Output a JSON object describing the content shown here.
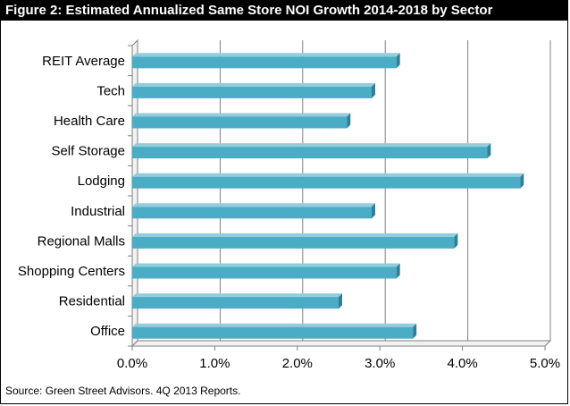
{
  "title": "Figure 2: Estimated Annualized Same Store NOI Growth 2014-2018 by Sector",
  "source": "Source: Green Street Advisors. 4Q 2013 Reports.",
  "chart_data": {
    "type": "bar",
    "orientation": "horizontal",
    "categories": [
      "REIT Average",
      "Tech",
      "Health Care",
      "Self Storage",
      "Lodging",
      "Industrial",
      "Regional Malls",
      "Shopping Centers",
      "Residential",
      "Office"
    ],
    "values": [
      3.2,
      2.9,
      2.6,
      4.3,
      4.7,
      2.9,
      3.9,
      3.2,
      2.5,
      3.4
    ],
    "unit": "%",
    "xlim": [
      0,
      5
    ],
    "xticks": [
      "0.0%",
      "1.0%",
      "2.0%",
      "3.0%",
      "4.0%",
      "5.0%"
    ],
    "grid": true,
    "bar_color": "#4bacc6"
  }
}
